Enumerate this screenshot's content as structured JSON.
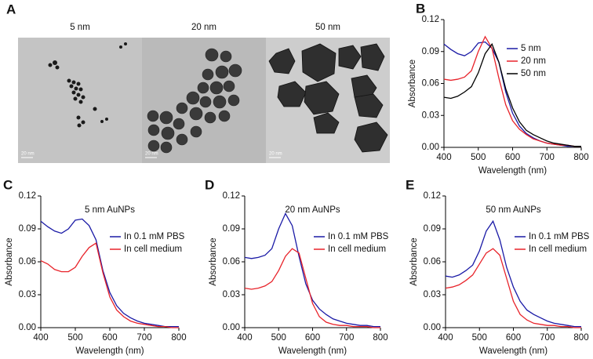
{
  "figure_a": {
    "panel": "A",
    "images": [
      {
        "title": "5 nm",
        "scale_bar": "20 nm"
      },
      {
        "title": "20 nm",
        "scale_bar": "20 nm"
      },
      {
        "title": "50 nm",
        "scale_bar": "20 nm"
      }
    ]
  },
  "chart_data": [
    {
      "panel": "B",
      "type": "line",
      "xlabel": "Wavelength (nm)",
      "ylabel": "Absorbance",
      "legend": "upper-right",
      "x": [
        400,
        420,
        440,
        460,
        480,
        500,
        520,
        540,
        560,
        580,
        600,
        620,
        640,
        660,
        680,
        700,
        720,
        740,
        760,
        780,
        800
      ],
      "series": [
        {
          "name": "5 nm",
          "color": "#1a1aa6",
          "values": [
            0.097,
            0.092,
            0.088,
            0.086,
            0.09,
            0.098,
            0.099,
            0.093,
            0.08,
            0.052,
            0.032,
            0.02,
            0.013,
            0.009,
            0.006,
            0.004,
            0.003,
            0.002,
            0.001,
            0.001,
            0.001
          ]
        },
        {
          "name": "20 nm",
          "color": "#e8232a",
          "values": [
            0.064,
            0.063,
            0.064,
            0.066,
            0.072,
            0.09,
            0.104,
            0.093,
            0.065,
            0.04,
            0.025,
            0.017,
            0.012,
            0.008,
            0.006,
            0.004,
            0.003,
            0.002,
            0.002,
            0.001,
            0.001
          ]
        },
        {
          "name": "50 nm",
          "color": "#000000",
          "values": [
            0.047,
            0.046,
            0.048,
            0.052,
            0.057,
            0.07,
            0.088,
            0.097,
            0.08,
            0.055,
            0.037,
            0.024,
            0.016,
            0.012,
            0.009,
            0.006,
            0.004,
            0.003,
            0.002,
            0.001,
            0.001
          ]
        }
      ],
      "xlim": [
        400,
        800
      ],
      "ylim": [
        0,
        0.12
      ],
      "xticks": [
        400,
        500,
        600,
        700,
        800
      ],
      "yticks": [
        {
          "value": 0,
          "label": "0.00"
        },
        {
          "value": 0.03,
          "label": "0.03"
        },
        {
          "value": 0.06,
          "label": "0.06"
        },
        {
          "value": 0.09,
          "label": "0.09"
        },
        {
          "value": 0.12,
          "label": "0.12"
        }
      ]
    },
    {
      "panel": "C",
      "type": "line",
      "title": "5 nm AuNPs",
      "xlabel": "Wavelength (nm)",
      "ylabel": "Absorbance",
      "legend": "right",
      "x": [
        400,
        420,
        440,
        460,
        480,
        500,
        520,
        540,
        560,
        580,
        600,
        620,
        640,
        660,
        680,
        700,
        720,
        740,
        760,
        780,
        800
      ],
      "series": [
        {
          "name": "In 0.1 mM PBS",
          "color": "#1a1aa6",
          "values": [
            0.097,
            0.092,
            0.088,
            0.086,
            0.09,
            0.098,
            0.099,
            0.093,
            0.08,
            0.052,
            0.032,
            0.02,
            0.013,
            0.009,
            0.006,
            0.004,
            0.003,
            0.002,
            0.001,
            0.001,
            0.001
          ]
        },
        {
          "name": "In cell medium",
          "color": "#e8232a",
          "values": [
            0.061,
            0.058,
            0.053,
            0.051,
            0.051,
            0.055,
            0.065,
            0.073,
            0.077,
            0.05,
            0.028,
            0.016,
            0.01,
            0.006,
            0.004,
            0.003,
            0.002,
            0.001,
            0.001,
            0,
            0
          ]
        }
      ],
      "xlim": [
        400,
        800
      ],
      "ylim": [
        0,
        0.12
      ],
      "xticks": [
        400,
        500,
        600,
        700,
        800
      ],
      "yticks": [
        {
          "value": 0,
          "label": "0.00"
        },
        {
          "value": 0.03,
          "label": "0.03"
        },
        {
          "value": 0.06,
          "label": "0.06"
        },
        {
          "value": 0.09,
          "label": "0.09"
        },
        {
          "value": 0.12,
          "label": "0.12"
        }
      ]
    },
    {
      "panel": "D",
      "type": "line",
      "title": "20 nm AuNPs",
      "xlabel": "Wavelength (nm)",
      "ylabel": "Absorbance",
      "legend": "right",
      "x": [
        400,
        420,
        440,
        460,
        480,
        500,
        520,
        540,
        560,
        580,
        600,
        620,
        640,
        660,
        680,
        700,
        720,
        740,
        760,
        780,
        800
      ],
      "series": [
        {
          "name": "In 0.1 mM PBS",
          "color": "#1a1aa6",
          "values": [
            0.064,
            0.063,
            0.064,
            0.066,
            0.072,
            0.09,
            0.104,
            0.093,
            0.065,
            0.04,
            0.025,
            0.017,
            0.012,
            0.008,
            0.006,
            0.004,
            0.003,
            0.002,
            0.002,
            0.001,
            0.001
          ]
        },
        {
          "name": "In cell medium",
          "color": "#e8232a",
          "values": [
            0.036,
            0.035,
            0.036,
            0.038,
            0.042,
            0.052,
            0.065,
            0.072,
            0.068,
            0.045,
            0.022,
            0.01,
            0.005,
            0.003,
            0.002,
            0.002,
            0.001,
            0.001,
            0.001,
            0,
            0
          ]
        }
      ],
      "xlim": [
        400,
        800
      ],
      "ylim": [
        0,
        0.12
      ],
      "xticks": [
        400,
        500,
        600,
        700,
        800
      ],
      "yticks": [
        {
          "value": 0,
          "label": "0.00"
        },
        {
          "value": 0.03,
          "label": "0.03"
        },
        {
          "value": 0.06,
          "label": "0.06"
        },
        {
          "value": 0.09,
          "label": "0.09"
        },
        {
          "value": 0.12,
          "label": "0.12"
        }
      ]
    },
    {
      "panel": "E",
      "type": "line",
      "title": "50 nm AuNPs",
      "xlabel": "Wavelength (nm)",
      "ylabel": "Absorbance",
      "legend": "right",
      "x": [
        400,
        420,
        440,
        460,
        480,
        500,
        520,
        540,
        560,
        580,
        600,
        620,
        640,
        660,
        680,
        700,
        720,
        740,
        760,
        780,
        800
      ],
      "series": [
        {
          "name": "In 0.1 mM PBS",
          "color": "#1a1aa6",
          "values": [
            0.047,
            0.046,
            0.048,
            0.052,
            0.057,
            0.07,
            0.088,
            0.097,
            0.08,
            0.055,
            0.037,
            0.024,
            0.016,
            0.012,
            0.009,
            0.006,
            0.004,
            0.003,
            0.002,
            0.001,
            0.001
          ]
        },
        {
          "name": "In cell medium",
          "color": "#e8232a",
          "values": [
            0.036,
            0.037,
            0.039,
            0.043,
            0.048,
            0.058,
            0.068,
            0.072,
            0.066,
            0.045,
            0.024,
            0.012,
            0.007,
            0.004,
            0.003,
            0.002,
            0.002,
            0.001,
            0.001,
            0,
            0
          ]
        }
      ],
      "xlim": [
        400,
        800
      ],
      "ylim": [
        0,
        0.12
      ],
      "xticks": [
        400,
        500,
        600,
        700,
        800
      ],
      "yticks": [
        {
          "value": 0,
          "label": "0.00"
        },
        {
          "value": 0.03,
          "label": "0.03"
        },
        {
          "value": 0.06,
          "label": "0.06"
        },
        {
          "value": 0.09,
          "label": "0.09"
        },
        {
          "value": 0.12,
          "label": "0.12"
        }
      ]
    }
  ]
}
